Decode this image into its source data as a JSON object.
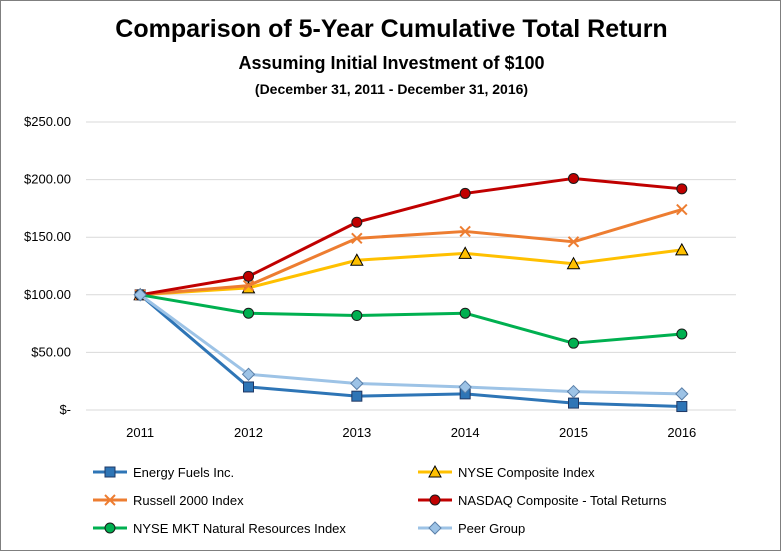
{
  "chart_data": {
    "type": "line",
    "title": "Comparison of 5-Year Cumulative Total Return",
    "subtitle": "Assuming Initial Investment of $100",
    "subtitle2": "(December 31, 2011  - December 31, 2016)",
    "categories": [
      "2011",
      "2012",
      "2013",
      "2014",
      "2015",
      "2016"
    ],
    "ylim": [
      0,
      250
    ],
    "yticks": [
      {
        "value": 0,
        "label": "$-"
      },
      {
        "value": 50,
        "label": "$50.00"
      },
      {
        "value": 100,
        "label": "$100.00"
      },
      {
        "value": 150,
        "label": "$150.00"
      },
      {
        "value": 200,
        "label": "$200.00"
      },
      {
        "value": 250,
        "label": "$250.00"
      }
    ],
    "grid": true,
    "legend": "bottom",
    "series": [
      {
        "name": "Energy Fuels Inc.",
        "values": [
          100,
          20,
          12,
          14,
          6,
          3
        ],
        "color": "#2e75b6",
        "marker": "square"
      },
      {
        "name": "NYSE Composite Index",
        "values": [
          100,
          106,
          130,
          136,
          127,
          139
        ],
        "color": "#ffc000",
        "marker": "triangle"
      },
      {
        "name": "Russell 2000 Index",
        "values": [
          100,
          108,
          149,
          155,
          146,
          174
        ],
        "color": "#ed7d31",
        "marker": "x"
      },
      {
        "name": "NASDAQ Composite - Total Returns",
        "values": [
          100,
          116,
          163,
          188,
          201,
          192
        ],
        "color": "#c00000",
        "marker": "circle"
      },
      {
        "name": "NYSE MKT Natural Resources Index",
        "values": [
          100,
          84,
          82,
          84,
          58,
          66
        ],
        "color": "#00b050",
        "marker": "circle"
      },
      {
        "name": "Peer Group",
        "values": [
          100,
          31,
          23,
          20,
          16,
          14
        ],
        "color": "#9dc3e6",
        "marker": "diamond"
      }
    ]
  }
}
